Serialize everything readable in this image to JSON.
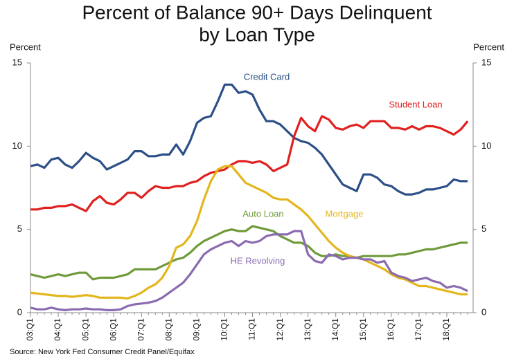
{
  "chart_data": {
    "type": "line",
    "title": [
      "Percent of Balance 90+ Days Delinquent",
      "by Loan Type"
    ],
    "y_label": "Percent",
    "y2_label": "Percent",
    "source": "Source: New York Fed Consumer Credit Panel/Equifax",
    "categories": [
      "03:Q1",
      null,
      null,
      null,
      "04:Q1",
      null,
      null,
      null,
      "05:Q1",
      null,
      null,
      null,
      "06:Q1",
      null,
      null,
      null,
      "07:Q1",
      null,
      null,
      null,
      "08:Q1",
      null,
      null,
      null,
      "09:Q1",
      null,
      null,
      null,
      "10:Q1",
      null,
      null,
      null,
      "11:Q1",
      null,
      null,
      null,
      "12:Q1",
      null,
      null,
      null,
      "13:Q1",
      null,
      null,
      null,
      "14:Q1",
      null,
      null,
      null,
      "15:Q1",
      null,
      null,
      null,
      "16:Q1",
      null,
      null,
      null,
      "17:Q1",
      null,
      null,
      null,
      "18:Q1",
      null,
      null,
      null
    ],
    "ylim": [
      0,
      15
    ],
    "yticks": [
      0,
      5,
      10,
      15
    ],
    "y2lim": [
      0,
      15
    ],
    "y2ticks": [
      0,
      5,
      10,
      15
    ],
    "grid": false,
    "series": [
      {
        "name": "Credit Card",
        "color": "#2b4f86",
        "values": [
          8.8,
          8.9,
          8.7,
          9.2,
          9.3,
          8.9,
          8.7,
          9.1,
          9.6,
          9.3,
          9.1,
          8.6,
          8.8,
          9.0,
          9.2,
          9.7,
          9.7,
          9.4,
          9.4,
          9.5,
          9.5,
          10.1,
          9.5,
          10.3,
          11.4,
          11.7,
          11.8,
          12.7,
          13.7,
          13.7,
          13.2,
          13.3,
          13.1,
          12.2,
          11.5,
          11.5,
          11.3,
          10.9,
          10.5,
          10.3,
          10.2,
          9.9,
          9.5,
          8.9,
          8.3,
          7.7,
          7.5,
          7.3,
          8.3,
          8.3,
          8.1,
          7.7,
          7.6,
          7.3,
          7.1,
          7.1,
          7.2,
          7.4,
          7.4,
          7.5,
          7.6,
          8.0,
          7.9,
          7.9
        ]
      },
      {
        "name": "Student Loan",
        "color": "#e0201f",
        "values": [
          6.2,
          6.2,
          6.3,
          6.3,
          6.4,
          6.4,
          6.5,
          6.3,
          6.1,
          6.7,
          7.0,
          6.6,
          6.5,
          6.8,
          7.2,
          7.2,
          6.9,
          7.3,
          7.6,
          7.5,
          7.5,
          7.6,
          7.6,
          7.8,
          7.9,
          8.2,
          8.4,
          8.5,
          8.6,
          8.9,
          9.1,
          9.1,
          9.0,
          9.1,
          8.9,
          8.5,
          8.7,
          8.9,
          10.6,
          11.7,
          11.2,
          10.9,
          11.8,
          11.6,
          11.1,
          11.0,
          11.2,
          11.3,
          11.1,
          11.5,
          11.5,
          11.5,
          11.1,
          11.1,
          11.0,
          11.2,
          11.0,
          11.2,
          11.2,
          11.1,
          10.9,
          10.7,
          11.0,
          11.5
        ]
      },
      {
        "name": "Auto Loan",
        "color": "#6f9a3a",
        "values": [
          2.3,
          2.2,
          2.1,
          2.2,
          2.3,
          2.2,
          2.3,
          2.4,
          2.4,
          2.0,
          2.1,
          2.1,
          2.1,
          2.2,
          2.3,
          2.6,
          2.6,
          2.6,
          2.6,
          2.8,
          3.0,
          3.2,
          3.3,
          3.6,
          4.0,
          4.3,
          4.5,
          4.7,
          4.9,
          5.0,
          4.9,
          4.9,
          5.2,
          5.1,
          5.0,
          4.9,
          4.6,
          4.4,
          4.2,
          4.2,
          4.0,
          3.6,
          3.4,
          3.4,
          3.5,
          3.4,
          3.4,
          3.3,
          3.4,
          3.4,
          3.4,
          3.4,
          3.4,
          3.5,
          3.5,
          3.6,
          3.7,
          3.8,
          3.8,
          3.9,
          4.0,
          4.1,
          4.2,
          4.2
        ]
      },
      {
        "name": "Mortgage",
        "color": "#e3b61c",
        "values": [
          1.2,
          1.15,
          1.1,
          1.05,
          1.0,
          1.0,
          0.95,
          1.0,
          1.05,
          1.0,
          0.9,
          0.9,
          0.9,
          0.9,
          0.85,
          1.0,
          1.2,
          1.5,
          1.7,
          2.1,
          2.8,
          3.9,
          4.1,
          4.6,
          5.5,
          6.8,
          7.9,
          8.6,
          8.8,
          8.8,
          8.3,
          7.8,
          7.6,
          7.4,
          7.2,
          6.9,
          6.8,
          6.8,
          6.5,
          6.2,
          5.8,
          5.3,
          4.8,
          4.3,
          3.9,
          3.6,
          3.4,
          3.3,
          3.2,
          3.0,
          2.8,
          2.6,
          2.3,
          2.1,
          2.0,
          1.8,
          1.6,
          1.6,
          1.5,
          1.4,
          1.3,
          1.2,
          1.1,
          1.1
        ]
      },
      {
        "name": "HE Revolving",
        "color": "#8a6bb0",
        "values": [
          0.3,
          0.2,
          0.2,
          0.3,
          0.2,
          0.15,
          0.2,
          0.2,
          0.25,
          0.2,
          0.2,
          0.15,
          0.15,
          0.2,
          0.4,
          0.5,
          0.55,
          0.6,
          0.7,
          0.9,
          1.2,
          1.5,
          1.8,
          2.3,
          2.9,
          3.5,
          3.8,
          4.0,
          4.2,
          4.3,
          4.0,
          4.3,
          4.2,
          4.3,
          4.6,
          4.7,
          4.7,
          4.7,
          4.9,
          4.9,
          3.5,
          3.1,
          3.0,
          3.5,
          3.4,
          3.2,
          3.3,
          3.3,
          3.2,
          3.2,
          3.0,
          3.1,
          2.4,
          2.2,
          2.1,
          1.9,
          2.0,
          2.1,
          1.9,
          1.8,
          1.5,
          1.6,
          1.5,
          1.3
        ]
      }
    ]
  }
}
